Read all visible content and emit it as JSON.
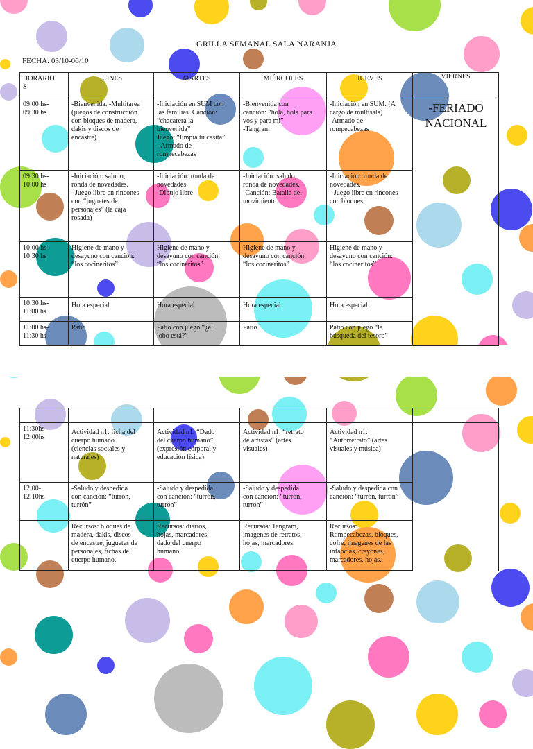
{
  "title": "GRILLA SEMANAL SALA NARANJA",
  "date_label": "FECHA: 03/10-06/10",
  "holiday_text": "-FERIADO\nNACIONAL",
  "week_table": {
    "headers": [
      "HORARIO\nS",
      "LUNES",
      "MARTES",
      "MIÉRCOLES",
      "JUEVES",
      "VIERNES"
    ],
    "rows": [
      {
        "time": "09:00 hs-\n09:30 hs",
        "cells": [
          "-Bienvenida. -Multitarea\n(juegos de construcción\ncon bloques de madera,\ndakis y discos de\nencastre)",
          "-Iniciación en SUM con\nlas familias. Canción:\n“chacarera la\nbienvenida”\nJuego: “limpia tu casita”\n- Armado de\nrompecabezas",
          "-Bienvenida con\ncanción: “hola, hola para\nvos y para mi”\n-Tangram",
          "-Iniciación en SUM. (A\ncargo de multisala)\n-Armado de\nrompecabezas"
        ]
      },
      {
        "time": "09:30 hs-\n10:00 hs",
        "cells": [
          "-Iniciación: saludo,\nronda de novedades.\n–Juego libre en rincones\ncon “juguetes de\npersonajes” (la caja\nrosada)",
          "-Iniciación: ronda de\nnovedades.\n-Dibujo libre",
          "-Iniciación: saludo,\nronda de novedades.\n-Canción: Batalla del\nmovimiento",
          " -Iniciación: ronda de\nnovedades.\n- Juego libre en rincones\ncon bloques."
        ]
      },
      {
        "time": "10:00 hs-\n10:30 hs",
        "cells": [
          "Higiene de mano y\ndesayuno con canción:\n“los cocineritos”",
          " Higiene de mano y\ndesayuno con canción:\n“los cocineritos”",
          " Higiene de mano y\ndesayuno con canción:\n“los cocineritos”",
          " Higiene de mano y\ndesayuno con canción:\n“los cocineritos”"
        ]
      },
      {
        "time": "10:30 hs-\n11:00 hs",
        "cells": [
          "Hora especial",
          "Hora especial",
          "Hora especial",
          "Hora especial"
        ]
      },
      {
        "time": "11:00 hs-\n11:30 hs",
        "cells": [
          "Patio",
          " Patio con juego “¿el\nlobo está?”",
          " Patio",
          " Patio con juego “la\nbúsqueda del tesoro”"
        ]
      }
    ]
  },
  "week_table_2": {
    "rows": [
      {
        "time": "11:30hs-\n12:00hs",
        "cells": [
          "Actividad n1:  ficha del\ncuerpo humano\n(ciencias sociales y\nnaturales)",
          " Actividad n1: “Dado\ndel cuerpo humano”\n(expresión corporal y\neducación física)",
          "Actividad n1: “retrato\nde artistas” (artes\nvisuales)",
          "Actividad n1:\n“Autorretrato” (artes\nvisuales y música)"
        ]
      },
      {
        "time": "12:00-\n12:10hs",
        "cells": [
          "-Saludo y despedida\ncon canción: “turrón,\nturrón”",
          "-Saludo y despedida\ncon canción: “turrón,\nturrón”",
          "-Saludo y despedida\ncon canción: “turrón,\nturrón”",
          "-Saludo y despedida con\ncanción: “turrón, turrón”"
        ]
      },
      {
        "time": "",
        "cells": [
          "Recursos: bloques de\nmadera, dakis, discos\nde encastre, juguetes de\npersonajes, fichas del\ncuerpo humano.",
          "Recursos: diarios,\nhojas, marcadores,\ndado del cuerpo\nhumano",
          "Recursos: Tangram,\nimagenes de retratos,\nhojas, marcadores.",
          "Recursos:\nRompecabezas, bloques,\ncofre, imagenes de las\ninfancias, crayones,\nmarcadores, hojas."
        ]
      }
    ]
  },
  "colors": {
    "teal": "#0e9c96",
    "gold": "#ffd21c",
    "lime": "#a8e04a",
    "sky": "#add9ec",
    "lavender": "#c8bde8",
    "pink": "#ff78c0",
    "rose": "#ff9ec8",
    "orange": "#ffa24a",
    "brown": "#c07f55",
    "steel": "#6b8cba",
    "blue": "#4b4bf0",
    "cyan": "#7af0f4",
    "olive": "#b6b128",
    "gray": "#bcbcbc",
    "violet": "#ffa0f4"
  }
}
